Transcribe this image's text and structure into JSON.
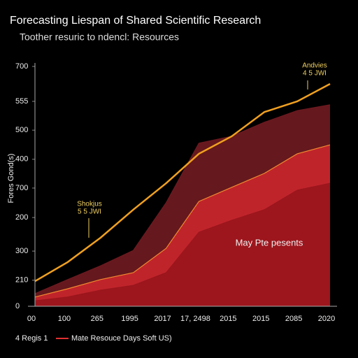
{
  "chart_data": {
    "type": "area",
    "title": "Forecasting Liespan of Shared Scientific Research",
    "subtitle": "Toother resuric to ndencl: Resources",
    "y_label": "Fores Gond(s)",
    "categories": [
      "00",
      "100",
      "265",
      "1995",
      "2017",
      "17, 2498",
      "2015",
      "2015",
      "2085",
      "2020"
    ],
    "ylim": [
      0,
      700
    ],
    "yticks": [
      0,
      {
        "value": 76,
        "label": "210"
      },
      {
        "value": 161,
        "label": "300"
      },
      {
        "value": 259,
        "label": "200"
      },
      {
        "value": 345,
        "label": "700"
      },
      {
        "value": 429,
        "label": "400"
      },
      {
        "value": 514,
        "label": "500"
      },
      {
        "value": 598,
        "label": "555"
      },
      700
    ],
    "series": [
      {
        "color": "#6e1a20",
        "values": [
          37,
          78,
          118,
          163,
          302,
          476,
          496,
          537,
          571,
          588
        ]
      },
      {
        "color": "#c8262c",
        "values": [
          27,
          51,
          78,
          98,
          169,
          306,
          347,
          388,
          445,
          471
        ]
      },
      {
        "name": "Mate Resouce Days Soft US)",
        "color": "#9a161c",
        "values": [
          16,
          27,
          47,
          61,
          98,
          216,
          251,
          282,
          339,
          359
        ]
      },
      {
        "color": "#f0a020",
        "line": true,
        "values": [
          73,
          129,
          200,
          282,
          359,
          445,
          496,
          567,
          598,
          649
        ]
      }
    ],
    "legend_note": "4 Regis 1",
    "annotations": [
      "Shokjus",
      "5 5 JWI",
      "Andvies",
      "4 5 JWI",
      "May Pte pesents"
    ]
  }
}
